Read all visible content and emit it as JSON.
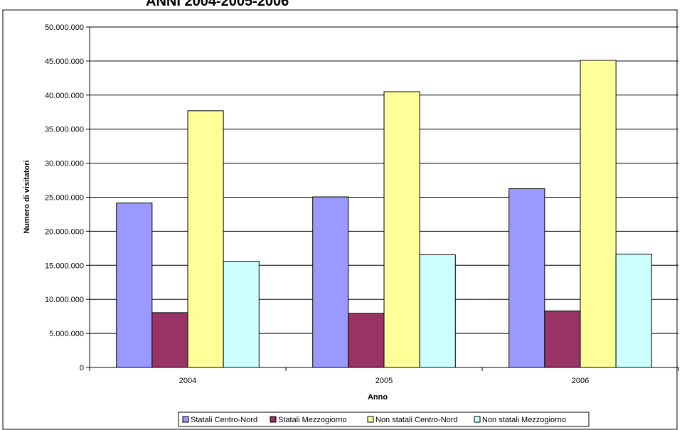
{
  "chart_data": {
    "type": "bar",
    "title": "ANNI 2004-2005-2006",
    "xlabel": "Anno",
    "ylabel": "Numero di visitatori",
    "categories": [
      "2004",
      "2005",
      "2006"
    ],
    "ylim": [
      0,
      50000000
    ],
    "yticks": [
      0,
      5000000,
      10000000,
      15000000,
      20000000,
      25000000,
      30000000,
      35000000,
      40000000,
      45000000,
      50000000
    ],
    "ytick_labels": [
      "0",
      "5.000.000",
      "10.000.000",
      "15.000.000",
      "20.000.000",
      "25.000.000",
      "30.000.000",
      "35.000.000",
      "40.000.000",
      "45.000.000",
      "50.000.000"
    ],
    "grid": true,
    "legend_position": "bottom",
    "series": [
      {
        "name": "Statali Centro-Nord",
        "color": "#9999ff",
        "values": [
          24150000,
          25050000,
          26250000
        ]
      },
      {
        "name": "Statali Mezzogiorno",
        "color": "#993366",
        "values": [
          8050000,
          7950000,
          8300000
        ]
      },
      {
        "name": "Non statali Centro-Nord",
        "color": "#ffff99",
        "values": [
          37700000,
          40500000,
          45100000
        ]
      },
      {
        "name": "Non statali Mezzogiorno",
        "color": "#ccffff",
        "values": [
          15600000,
          16550000,
          16650000
        ]
      }
    ]
  }
}
